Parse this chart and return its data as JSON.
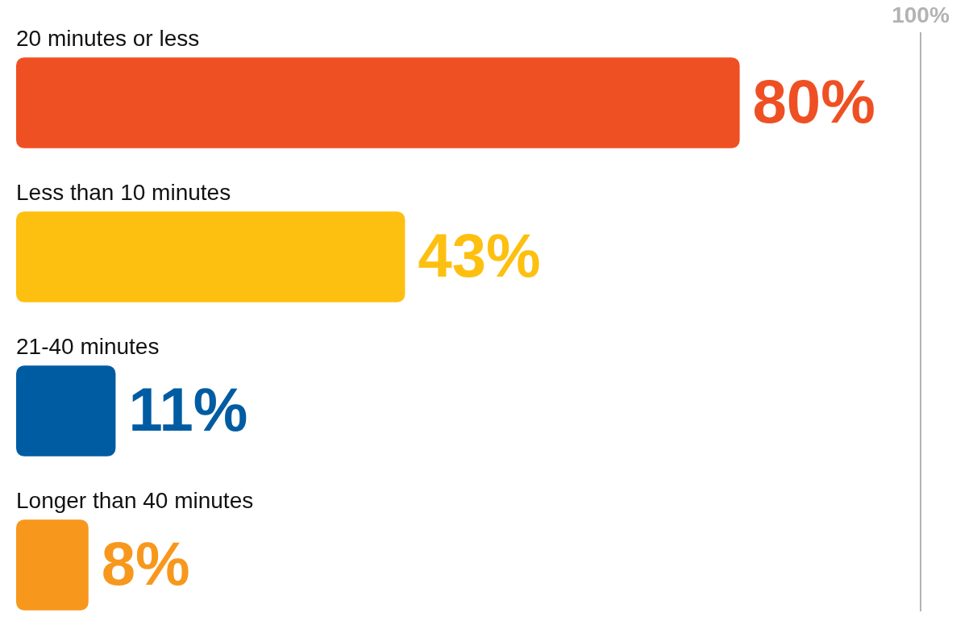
{
  "chart_data": {
    "type": "bar",
    "orientation": "horizontal",
    "categories": [
      "20 minutes or less",
      "Less than 10 minutes",
      "21-40 minutes",
      "Longer than 40 minutes"
    ],
    "values": [
      80,
      43,
      11,
      8
    ],
    "colors": [
      "#ef5023",
      "#fdc010",
      "#005ca2",
      "#f7981d"
    ],
    "value_labels": [
      "80%",
      "43%",
      "11%",
      "8%"
    ],
    "tick_labels": false,
    "grid": false,
    "legend": false,
    "ref_lines": [
      {
        "axis": "x",
        "value": 100,
        "label": "100%",
        "color": "#b3b3b3"
      }
    ]
  }
}
